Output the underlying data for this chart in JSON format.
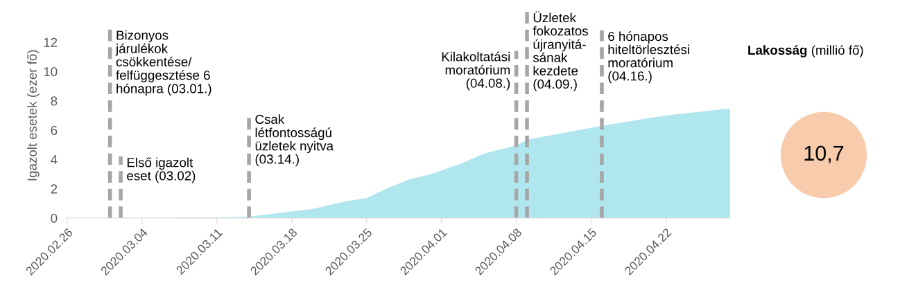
{
  "chart_data": [
    {
      "type": "area",
      "ylabel": "Igazolt esetek (ezer fő)",
      "x": [
        "2020-03-01",
        "2020-03-11",
        "2020-03-14",
        "2020-03-20",
        "2020-03-23",
        "2020-03-25",
        "2020-03-27",
        "2020-03-29",
        "2020-03-31",
        "2020-04-03",
        "2020-04-05",
        "2020-04-08",
        "2020-04-09",
        "2020-04-12",
        "2020-04-16",
        "2020-04-22",
        "2020-04-28"
      ],
      "series": [
        {
          "color": "#b0e6ee",
          "values": [
            0,
            0.03,
            0.1,
            0.63,
            1.13,
            1.37,
            2.04,
            2.64,
            2.99,
            3.77,
            4.4,
            4.95,
            5.34,
            5.75,
            6.29,
            7.0,
            7.47
          ]
        }
      ],
      "xlim": [
        "2020-02-26",
        "2020-04-28"
      ],
      "xticks": [
        {
          "value": "2020-02-26",
          "label": "2020.02.26"
        },
        {
          "value": "2020-03-04",
          "label": "2020.03.04"
        },
        {
          "value": "2020-03-11",
          "label": "2020.03.11"
        },
        {
          "value": "2020-03-18",
          "label": "2020.03.18"
        },
        {
          "value": "2020-03-25",
          "label": "2020.03.25"
        },
        {
          "value": "2020-04-01",
          "label": "2020.04.01"
        },
        {
          "value": "2020-04-08",
          "label": "2020.04.08"
        },
        {
          "value": "2020-04-15",
          "label": "2020.04.15"
        },
        {
          "value": "2020-04-22",
          "label": "2020.04.22"
        }
      ],
      "ylim": [
        0,
        14
      ],
      "yticks": [
        0,
        2,
        4,
        6,
        8,
        10,
        12
      ],
      "grid": false,
      "ref_lines": [
        {
          "axis": "x",
          "value": "2020-03-01",
          "label": "Bizonyos\njárulékok\ncsökkentése/\nfelfüggesztése 6\nhónapra (03.01.)",
          "color": "#a6a6a6",
          "line_style": "dashed"
        },
        {
          "axis": "x",
          "value": "2020-03-02",
          "label": "Első igazolt\neset (03.02)",
          "color": "#a6a6a6",
          "line_style": "dashed"
        },
        {
          "axis": "x",
          "value": "2020-03-14",
          "label": "Csak\nlétfontosságú\nüzletek nyitva\n(03.14.)",
          "color": "#a6a6a6",
          "line_style": "dashed"
        },
        {
          "axis": "x",
          "value": "2020-04-08",
          "label": "Kilakoltatási\nmoratórium\n(04.08.)",
          "color": "#a6a6a6",
          "line_style": "dashed"
        },
        {
          "axis": "x",
          "value": "2020-04-09",
          "label": "Üzletek\nfokozatos\nújranyitá-\nsának\nkezdete\n(04.09.)",
          "color": "#a6a6a6",
          "line_style": "dashed"
        },
        {
          "axis": "x",
          "value": "2020-04-16",
          "label": "6 hónapos\nhiteltörlesztési\nmoratórium\n(04.16.)",
          "color": "#a6a6a6",
          "line_style": "dashed"
        }
      ]
    },
    {
      "type": "other",
      "title": "Lakosság",
      "subtitle": "(millió fő)",
      "values": [
        10.7
      ],
      "value_labels": [
        "10,7"
      ],
      "colors": [
        "#f8cbad"
      ]
    }
  ]
}
